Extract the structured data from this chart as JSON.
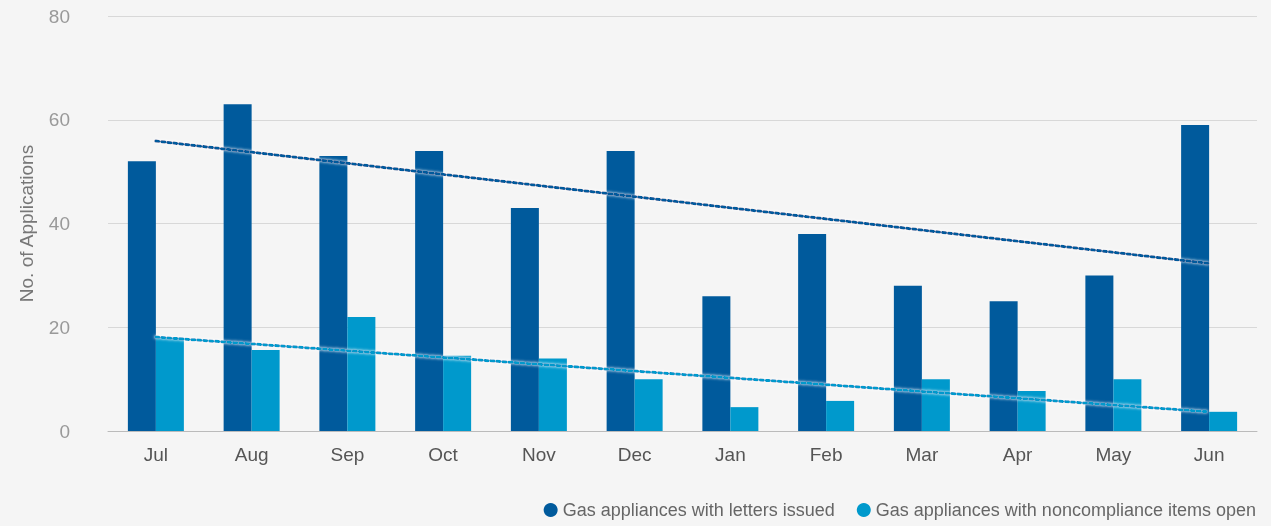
{
  "chart_data": {
    "type": "bar",
    "ylabel": "No. of Applications",
    "categories": [
      "Jul",
      "Aug",
      "Sep",
      "Oct",
      "Nov",
      "Dec",
      "Jan",
      "Feb",
      "Mar",
      "Apr",
      "May",
      "Jun"
    ],
    "series": [
      {
        "name": "Gas appliances with letters issued",
        "color": "#005a9c",
        "values": [
          52,
          63,
          53,
          54,
          43,
          54,
          26,
          38,
          28,
          25,
          30,
          59
        ]
      },
      {
        "name": "Gas appliances with noncompliance items open",
        "color": "#0099cc",
        "values": [
          18,
          15.6,
          22,
          14.5,
          14,
          10,
          4.6,
          5.8,
          10,
          7.7,
          10,
          3.7
        ]
      },
      {
        "type": "line",
        "line_style": "dotted",
        "marker": "none",
        "color": "#005a9c",
        "values": [
          55.9,
          null,
          null,
          null,
          null,
          null,
          null,
          null,
          null,
          null,
          null,
          32.3
        ]
      },
      {
        "type": "line",
        "line_style": "dotted",
        "marker": "none",
        "color": "#0099cc",
        "values": [
          18.1,
          null,
          null,
          null,
          null,
          null,
          null,
          null,
          null,
          null,
          null,
          3.7
        ]
      }
    ],
    "ylim": [
      0,
      80
    ],
    "yticks": [
      0,
      20,
      40,
      60,
      80
    ],
    "grid": "y",
    "legend": "bottom right"
  }
}
